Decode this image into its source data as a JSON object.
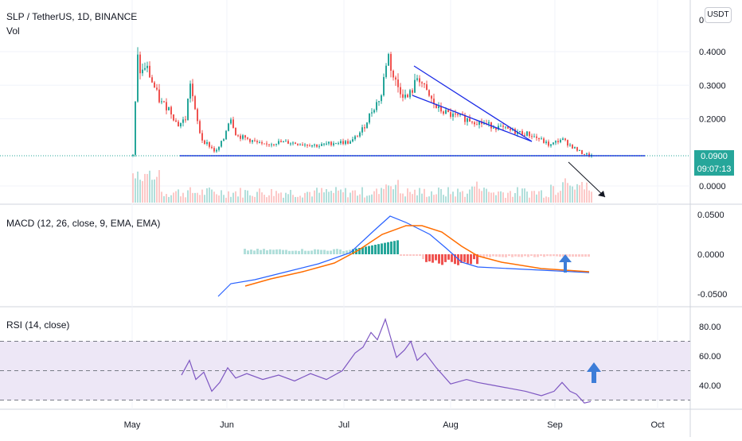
{
  "header": {
    "symbol_line": "SLP / TetherUS, 1D, BINANCE",
    "vol_label": "Vol",
    "currency_button": "USDT",
    "last_price": "0.0900",
    "countdown": "09:07:13"
  },
  "indicators": {
    "macd_label": "MACD (12, 26, close, 9, EMA, EMA)",
    "rsi_label": "RSI (14, close)"
  },
  "colors": {
    "up": "#26a69a",
    "down": "#ef5350",
    "trendline": "#1b2be6",
    "macd_line": "#2962ff",
    "signal_line": "#ff6d00",
    "rsi_line": "#7e57c2",
    "rsi_band": "#ede7f6",
    "arrow": "#3d7dd8"
  },
  "chart_data": [
    {
      "type": "candlestick",
      "title": "SLP / TetherUS, 1D, BINANCE",
      "x_ticks": [
        "May",
        "Jun",
        "Jul",
        "Aug",
        "Sep",
        "Oct"
      ],
      "y_ticks": [
        "0.4000",
        "0.3000",
        "0.2000",
        "0.0000"
      ],
      "top_tick_fragment": "0",
      "last_price": 0.09,
      "support_level": 0.09,
      "ylim": [
        0,
        0.45
      ],
      "series": [
        {
          "name": "Price",
          "x": [
            "2021-05-01",
            "2021-05-15",
            "2021-06-01",
            "2021-06-15",
            "2021-07-01",
            "2021-07-13",
            "2021-07-20",
            "2021-08-01",
            "2021-08-15",
            "2021-09-01",
            "2021-09-10"
          ],
          "values": [
            0.09,
            0.2,
            0.13,
            0.12,
            0.13,
            0.4,
            0.34,
            0.22,
            0.16,
            0.14,
            0.09
          ]
        }
      ],
      "volume_ylim": [
        0,
        1
      ],
      "volume_note": "Vol"
    },
    {
      "type": "line",
      "title": "MACD (12, 26, close, 9, EMA, EMA)",
      "y_ticks": [
        "0.0500",
        "0.0000",
        "-0.0500"
      ],
      "ylim": [
        -0.06,
        0.06
      ]
    },
    {
      "type": "line",
      "title": "RSI (14, close)",
      "y_ticks": [
        "80.00",
        "60.00",
        "40.00"
      ],
      "ylim": [
        25,
        90
      ],
      "band": [
        30,
        70
      ],
      "mid": 50
    }
  ]
}
